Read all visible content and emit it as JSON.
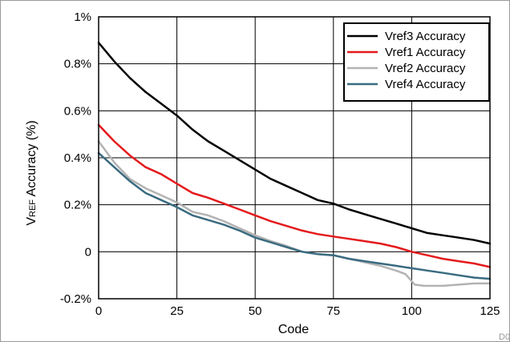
{
  "chart_data": {
    "type": "line",
    "xlabel": "Code",
    "ylabel_main": "V",
    "ylabel_sub": "REF",
    "ylabel_rest": " Accuracy (%)",
    "xlim": [
      0,
      125
    ],
    "ylim": [
      -0.2,
      1.0
    ],
    "xticks": [
      0,
      25,
      50,
      75,
      100,
      125
    ],
    "xtick_labels": [
      "0",
      "25",
      "50",
      "75",
      "100",
      "125"
    ],
    "yticks": [
      -0.2,
      0,
      0.2,
      0.4,
      0.6,
      0.8,
      1.0
    ],
    "ytick_labels": [
      "-0.2%",
      "0",
      "0.2%",
      "0.4%",
      "0.6%",
      "0.8%",
      "1%"
    ],
    "grid": true,
    "legend_position": "top-right",
    "figure_id": "D006",
    "series": [
      {
        "name": "Vref3 Accuracy",
        "color": "#000000",
        "x": [
          0,
          5,
          10,
          15,
          20,
          25,
          30,
          35,
          40,
          45,
          50,
          55,
          60,
          65,
          70,
          75,
          80,
          85,
          90,
          95,
          100,
          105,
          110,
          115,
          120,
          125
        ],
        "values": [
          0.89,
          0.81,
          0.74,
          0.68,
          0.63,
          0.58,
          0.52,
          0.47,
          0.43,
          0.39,
          0.35,
          0.31,
          0.28,
          0.25,
          0.22,
          0.205,
          0.18,
          0.16,
          0.14,
          0.12,
          0.1,
          0.08,
          0.07,
          0.06,
          0.05,
          0.035
        ]
      },
      {
        "name": "Vref1 Accuracy",
        "color": "#e41a1c",
        "x": [
          0,
          5,
          10,
          15,
          20,
          25,
          30,
          35,
          40,
          45,
          50,
          55,
          60,
          65,
          70,
          75,
          80,
          85,
          90,
          95,
          100,
          105,
          110,
          115,
          120,
          125
        ],
        "values": [
          0.54,
          0.47,
          0.41,
          0.36,
          0.33,
          0.29,
          0.25,
          0.23,
          0.205,
          0.18,
          0.155,
          0.13,
          0.11,
          0.09,
          0.075,
          0.065,
          0.055,
          0.045,
          0.035,
          0.02,
          0.0,
          -0.015,
          -0.03,
          -0.04,
          -0.05,
          -0.065
        ]
      },
      {
        "name": "Vref2 Accuracy",
        "color": "#b3b3b3",
        "x": [
          0,
          5,
          10,
          15,
          20,
          25,
          30,
          35,
          40,
          45,
          50,
          55,
          60,
          65,
          70,
          75,
          80,
          85,
          90,
          95,
          98,
          101,
          104,
          110,
          115,
          120,
          125
        ],
        "values": [
          0.47,
          0.38,
          0.31,
          0.27,
          0.24,
          0.21,
          0.17,
          0.155,
          0.13,
          0.1,
          0.07,
          0.045,
          0.025,
          0.0,
          -0.01,
          -0.015,
          -0.03,
          -0.045,
          -0.06,
          -0.08,
          -0.095,
          -0.14,
          -0.145,
          -0.145,
          -0.14,
          -0.135,
          -0.135
        ]
      },
      {
        "name": "Vref4 Accuracy",
        "color": "#3a6b80",
        "x": [
          0,
          5,
          10,
          15,
          20,
          25,
          30,
          35,
          40,
          45,
          50,
          55,
          60,
          65,
          70,
          75,
          80,
          85,
          90,
          95,
          100,
          105,
          110,
          115,
          120,
          125
        ],
        "values": [
          0.42,
          0.36,
          0.3,
          0.25,
          0.22,
          0.19,
          0.155,
          0.135,
          0.115,
          0.09,
          0.06,
          0.04,
          0.02,
          0.0,
          -0.01,
          -0.015,
          -0.03,
          -0.04,
          -0.05,
          -0.06,
          -0.07,
          -0.08,
          -0.09,
          -0.1,
          -0.11,
          -0.115
        ]
      }
    ]
  }
}
